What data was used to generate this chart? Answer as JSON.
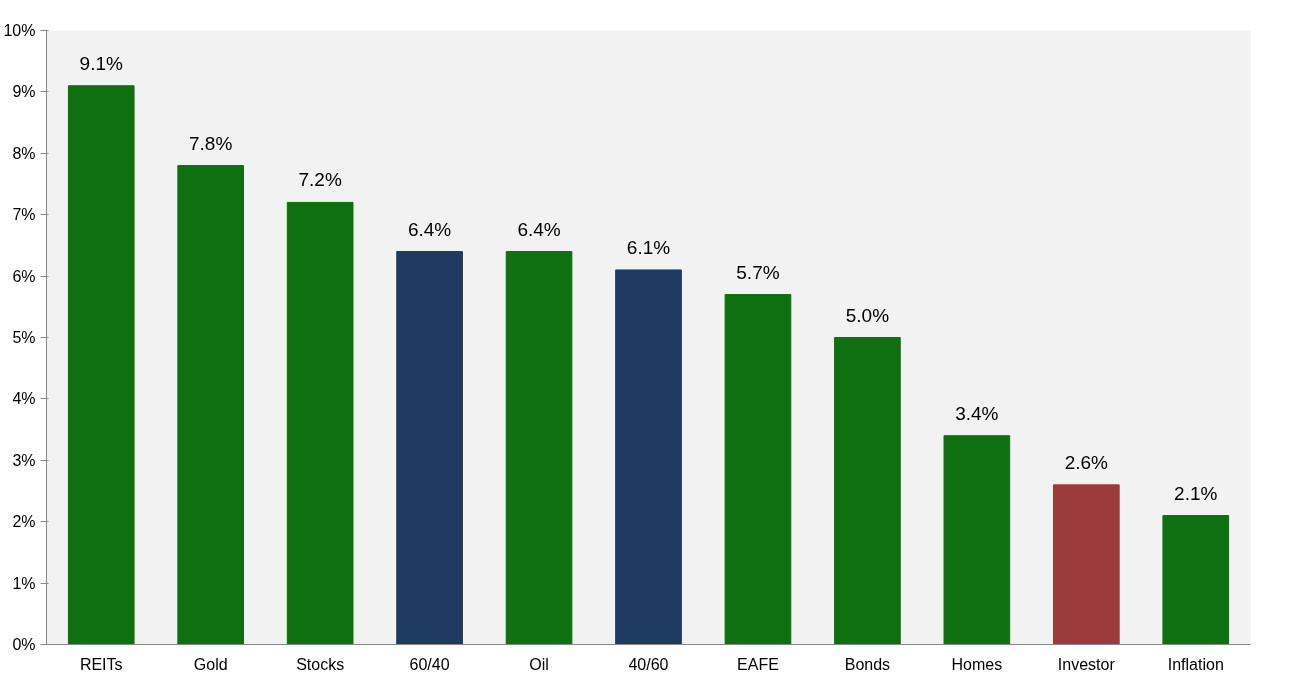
{
  "chart_data": {
    "type": "bar",
    "categories": [
      "REITs",
      "Gold",
      "Stocks",
      "60/40",
      "Oil",
      "40/60",
      "EAFE",
      "Bonds",
      "Homes",
      "Investor",
      "Inflation"
    ],
    "values": [
      9.1,
      7.8,
      7.2,
      6.4,
      6.4,
      6.1,
      5.7,
      5.0,
      3.4,
      2.6,
      2.1
    ],
    "colors": [
      "#0e700e",
      "#0e700e",
      "#0e700e",
      "#1f3a60",
      "#0e700e",
      "#1f3a60",
      "#0e700e",
      "#0e700e",
      "#0e700e",
      "#9b3b3b",
      "#0e700e"
    ],
    "value_labels": [
      "9.1%",
      "7.8%",
      "7.2%",
      "6.4%",
      "6.4%",
      "6.1%",
      "5.7%",
      "5.0%",
      "3.4%",
      "2.6%",
      "2.1%"
    ],
    "ylim": [
      0,
      10
    ],
    "yticks": [
      {
        "value": 0,
        "label": "0%"
      },
      {
        "value": 1,
        "label": "1%"
      },
      {
        "value": 2,
        "label": "2%"
      },
      {
        "value": 3,
        "label": "3%"
      },
      {
        "value": 4,
        "label": "4%"
      },
      {
        "value": 5,
        "label": "5%"
      },
      {
        "value": 6,
        "label": "6%"
      },
      {
        "value": 7,
        "label": "7%"
      },
      {
        "value": 8,
        "label": "8%"
      },
      {
        "value": 9,
        "label": "9%"
      },
      {
        "value": 10,
        "label": "10%"
      }
    ],
    "grid": false
  }
}
